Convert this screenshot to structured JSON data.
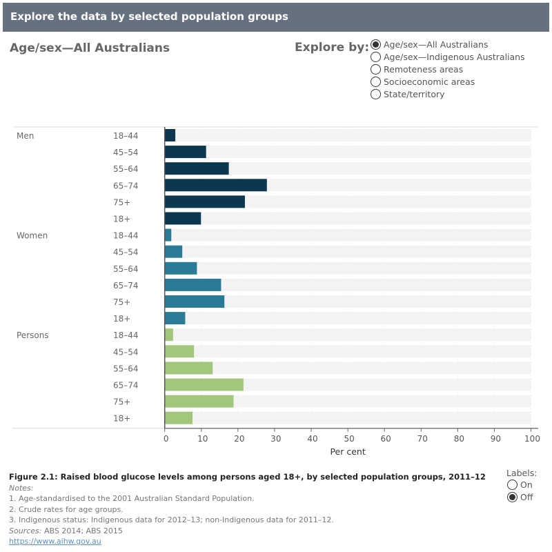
{
  "header": {
    "title": "Explore the data by selected population groups"
  },
  "chart_title": "Age/sex—All Australians",
  "explore": {
    "label": "Explore by:",
    "options": [
      "Age/sex—All Australians",
      "Age/sex—Indigenous Australians",
      "Remoteness areas",
      "Socioeconomic areas",
      "State/territory"
    ],
    "selected": 0
  },
  "labels_toggle": {
    "label": "Labels:",
    "options": [
      "On",
      "Off"
    ],
    "selected": 1
  },
  "chart_data": {
    "type": "bar",
    "orientation": "horizontal",
    "xlabel": "Per cent",
    "xlim": [
      0,
      100
    ],
    "xticks": [
      0,
      10,
      20,
      30,
      40,
      50,
      60,
      70,
      80,
      90,
      100
    ],
    "groups": [
      {
        "name": "Men",
        "color": "#0b374f",
        "categories": [
          "18–44",
          "45–54",
          "55–64",
          "65–74",
          "75+",
          "18+"
        ],
        "values": [
          2.9,
          11.3,
          17.5,
          27.9,
          21.9,
          9.9
        ]
      },
      {
        "name": "Women",
        "color": "#2a7c96",
        "categories": [
          "18–44",
          "45–54",
          "55–64",
          "65–74",
          "75+",
          "18+"
        ],
        "values": [
          1.8,
          4.8,
          8.8,
          15.4,
          16.3,
          5.6
        ]
      },
      {
        "name": "Persons",
        "color": "#a2c77c",
        "categories": [
          "18–44",
          "45–54",
          "55–64",
          "65–74",
          "75+",
          "18+"
        ],
        "values": [
          2.3,
          8.0,
          13.1,
          21.5,
          18.8,
          7.6
        ]
      }
    ]
  },
  "footer": {
    "figure": "Figure 2.1: Raised blood glucose levels among persons aged 18+, by selected population groups, 2011–12",
    "notes_label": "Notes:",
    "notes": [
      "1. Age-standardised to the 2001 Australian Standard Population.",
      "2. Crude rates for age groups.",
      "3. Indigenous status: Indigenous data for 2012–13; non-Indigenous data for 2011–12."
    ],
    "sources_label": "Sources:",
    "sources": " ABS 2014; ABS 2015",
    "link": "https://www.aihw.gov.au"
  }
}
